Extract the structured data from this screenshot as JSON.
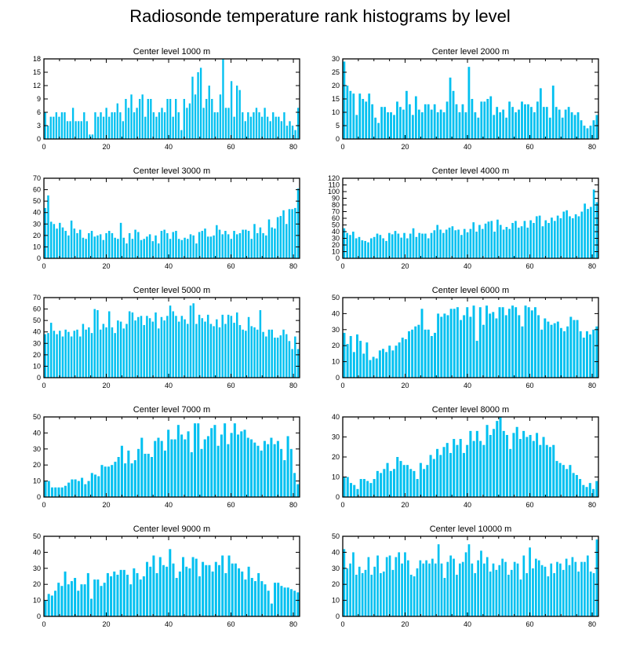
{
  "title": "Radiosonde temperature rank histograms by level",
  "colors": {
    "bar": "#00c0f0",
    "axis": "#000000",
    "background": "#ffffff"
  },
  "chart_data": [
    {
      "type": "bar",
      "title": "Center level 1000 m",
      "ylim": [
        0,
        18
      ],
      "yticks": [
        0,
        3,
        6,
        9,
        12,
        15,
        18
      ],
      "xlim": [
        0,
        82
      ],
      "xticks": [
        0,
        20,
        40,
        60,
        80
      ],
      "yaxis_side": "left",
      "values": [
        6,
        3,
        5,
        5,
        6,
        5,
        6,
        6,
        4,
        4,
        7,
        4,
        4,
        4,
        6,
        4,
        1,
        1,
        6,
        5,
        6,
        5,
        7,
        5,
        6,
        6,
        8,
        6,
        4,
        9,
        7,
        10,
        6,
        7,
        9,
        10,
        5,
        9,
        9,
        6,
        5,
        6,
        7,
        6,
        9,
        9,
        5,
        9,
        6,
        2,
        9,
        7,
        8,
        14,
        10,
        15,
        16,
        7,
        9,
        12,
        9,
        6,
        6,
        10,
        18,
        7,
        7,
        13,
        5,
        12,
        11,
        6,
        4,
        6,
        5,
        6,
        7,
        6,
        5,
        7,
        5,
        4,
        6,
        5,
        5,
        4,
        6,
        3,
        4,
        3,
        2,
        7
      ]
    },
    {
      "type": "bar",
      "title": "Center level 2000 m",
      "ylim": [
        0,
        30
      ],
      "yticks": [
        0,
        5,
        10,
        15,
        20,
        25,
        30
      ],
      "xlim": [
        0,
        82
      ],
      "xticks": [
        0,
        20,
        40,
        60,
        80
      ],
      "yaxis_side": "left",
      "values": [
        29,
        20,
        18,
        17,
        9,
        17,
        15,
        14,
        17,
        13,
        8,
        6,
        12,
        12,
        10,
        10,
        9,
        14,
        12,
        11,
        18,
        13,
        9,
        16,
        11,
        10,
        13,
        13,
        11,
        13,
        10,
        11,
        10,
        14,
        23,
        18,
        13,
        10,
        13,
        10,
        27,
        15,
        10,
        8,
        14,
        14,
        15,
        16,
        9,
        12,
        10,
        11,
        8,
        14,
        12,
        10,
        11,
        14,
        13,
        13,
        12,
        10,
        14,
        19,
        12,
        12,
        8,
        20,
        12,
        11,
        8,
        11,
        12,
        10,
        9,
        10,
        7,
        5,
        4,
        5,
        7,
        9
      ]
    },
    {
      "type": "bar",
      "title": "Center level 3000 m",
      "ylim": [
        0,
        70
      ],
      "yticks": [
        0,
        10,
        20,
        30,
        40,
        50,
        60,
        70
      ],
      "xlim": [
        0,
        82
      ],
      "xticks": [
        0,
        20,
        40,
        60,
        80
      ],
      "yaxis_side": "left",
      "values": [
        44,
        55,
        32,
        30,
        26,
        31,
        27,
        24,
        20,
        33,
        26,
        22,
        25,
        18,
        17,
        22,
        24,
        19,
        20,
        21,
        16,
        22,
        24,
        22,
        18,
        17,
        31,
        18,
        13,
        22,
        17,
        25,
        23,
        16,
        17,
        19,
        21,
        15,
        20,
        13,
        24,
        25,
        22,
        17,
        23,
        24,
        17,
        16,
        18,
        17,
        21,
        20,
        13,
        23,
        24,
        26,
        19,
        19,
        20,
        29,
        25,
        21,
        24,
        21,
        17,
        24,
        21,
        22,
        25,
        25,
        24,
        17,
        30,
        22,
        27,
        22,
        20,
        34,
        27,
        26,
        36,
        37,
        42,
        30,
        43,
        43,
        44,
        61
      ]
    },
    {
      "type": "bar",
      "title": "Center level 4000 m",
      "ylim": [
        0,
        120
      ],
      "yticks": [
        0,
        10,
        20,
        30,
        40,
        50,
        60,
        70,
        80,
        90,
        100,
        110,
        120
      ],
      "xlim": [
        0,
        82
      ],
      "xticks": [
        0,
        20,
        40,
        60,
        80
      ],
      "yaxis_side": "left",
      "values": [
        45,
        38,
        35,
        40,
        30,
        32,
        27,
        26,
        24,
        30,
        32,
        37,
        35,
        30,
        26,
        38,
        36,
        41,
        37,
        31,
        38,
        30,
        37,
        45,
        32,
        38,
        37,
        37,
        30,
        38,
        42,
        50,
        43,
        38,
        43,
        46,
        48,
        42,
        43,
        35,
        44,
        39,
        44,
        54,
        40,
        50,
        44,
        52,
        55,
        56,
        40,
        58,
        50,
        43,
        47,
        44,
        53,
        56,
        46,
        48,
        56,
        46,
        57,
        53,
        63,
        64,
        48,
        57,
        53,
        61,
        56,
        64,
        60,
        70,
        72,
        63,
        60,
        66,
        63,
        70,
        82,
        74,
        77,
        103,
        84
      ]
    },
    {
      "type": "bar",
      "title": "Center level 5000 m",
      "ylim": [
        0,
        70
      ],
      "yticks": [
        0,
        10,
        20,
        30,
        40,
        50,
        60,
        70
      ],
      "xlim": [
        0,
        82
      ],
      "xticks": [
        0,
        20,
        40,
        60,
        80
      ],
      "yaxis_side": "left",
      "values": [
        38,
        39,
        48,
        41,
        38,
        41,
        36,
        42,
        40,
        36,
        41,
        42,
        36,
        47,
        42,
        44,
        39,
        60,
        59,
        42,
        47,
        44,
        58,
        44,
        39,
        50,
        49,
        43,
        47,
        58,
        57,
        50,
        53,
        54,
        46,
        54,
        52,
        49,
        57,
        43,
        53,
        50,
        54,
        63,
        58,
        54,
        49,
        54,
        51,
        47,
        63,
        65,
        47,
        55,
        52,
        49,
        55,
        47,
        45,
        51,
        44,
        55,
        47,
        55,
        54,
        48,
        57,
        46,
        42,
        41,
        53,
        45,
        44,
        42,
        59,
        40,
        36,
        42,
        42,
        35,
        35,
        37,
        42,
        38,
        32,
        25,
        36,
        25
      ]
    },
    {
      "type": "bar",
      "title": "Center level 6000 m",
      "ylim": [
        0,
        50
      ],
      "yticks": [
        0,
        10,
        20,
        30,
        40,
        50
      ],
      "xlim": [
        0,
        82
      ],
      "xticks": [
        0,
        20,
        40,
        60,
        80
      ],
      "yaxis_side": "left",
      "values": [
        28,
        21,
        26,
        16,
        27,
        23,
        15,
        22,
        11,
        13,
        12,
        17,
        18,
        16,
        20,
        17,
        20,
        22,
        25,
        24,
        29,
        30,
        32,
        33,
        43,
        30,
        30,
        26,
        28,
        40,
        38,
        40,
        39,
        43,
        43,
        44,
        36,
        39,
        44,
        38,
        45,
        23,
        44,
        33,
        45,
        40,
        41,
        37,
        44,
        44,
        39,
        43,
        45,
        44,
        39,
        32,
        45,
        44,
        42,
        44,
        39,
        30,
        37,
        35,
        33,
        34,
        35,
        31,
        29,
        32,
        38,
        36,
        36,
        29,
        25,
        29,
        27,
        30,
        32
      ]
    },
    {
      "type": "bar",
      "title": "Center level 7000 m",
      "ylim": [
        0,
        50
      ],
      "yticks": [
        0,
        10,
        20,
        30,
        40,
        50
      ],
      "xlim": [
        0,
        82
      ],
      "xticks": [
        0,
        20,
        40,
        60,
        80
      ],
      "yaxis_side": "left",
      "values": [
        10,
        10,
        6,
        6,
        6,
        6,
        7,
        9,
        11,
        11,
        10,
        12,
        8,
        10,
        15,
        14,
        13,
        20,
        19,
        19,
        20,
        22,
        25,
        32,
        21,
        29,
        21,
        23,
        30,
        37,
        27,
        27,
        25,
        35,
        37,
        35,
        29,
        42,
        36,
        36,
        45,
        39,
        36,
        41,
        28,
        46,
        46,
        30,
        36,
        38,
        43,
        45,
        32,
        39,
        46,
        33,
        40,
        46,
        39,
        41,
        42,
        37,
        36,
        34,
        32,
        29,
        35,
        33,
        37,
        33,
        35,
        30,
        23,
        38,
        30,
        15,
        8
      ]
    },
    {
      "type": "bar",
      "title": "Center level 8000 m",
      "ylim": [
        0,
        40
      ],
      "yticks": [
        0,
        10,
        20,
        30,
        40
      ],
      "xlim": [
        0,
        82
      ],
      "xticks": [
        0,
        20,
        40,
        60,
        80
      ],
      "yaxis_side": "left",
      "values": [
        10,
        10,
        7,
        6,
        4,
        9,
        9,
        8,
        7,
        9,
        13,
        12,
        14,
        17,
        13,
        14,
        20,
        18,
        16,
        16,
        14,
        13,
        9,
        17,
        14,
        16,
        21,
        19,
        24,
        21,
        25,
        27,
        22,
        29,
        26,
        29,
        22,
        26,
        33,
        28,
        33,
        28,
        26,
        36,
        31,
        34,
        38,
        40,
        33,
        31,
        24,
        32,
        35,
        29,
        33,
        30,
        31,
        28,
        32,
        26,
        30,
        26,
        25,
        26,
        18,
        17,
        16,
        14,
        16,
        12,
        11,
        9,
        6,
        5,
        7,
        4,
        8
      ]
    },
    {
      "type": "bar",
      "title": "Center level 9000 m",
      "ylim": [
        0,
        50
      ],
      "yticks": [
        0,
        10,
        20,
        30,
        40,
        50
      ],
      "xlim": [
        0,
        82
      ],
      "xticks": [
        0,
        20,
        40,
        60,
        80
      ],
      "yaxis_side": "left",
      "values": [
        10,
        14,
        13,
        16,
        21,
        19,
        28,
        20,
        22,
        24,
        16,
        20,
        20,
        27,
        11,
        23,
        23,
        19,
        21,
        27,
        25,
        28,
        26,
        29,
        29,
        26,
        20,
        30,
        27,
        23,
        25,
        34,
        31,
        38,
        27,
        37,
        32,
        31,
        42,
        33,
        24,
        28,
        37,
        31,
        30,
        37,
        36,
        25,
        34,
        32,
        32,
        28,
        34,
        32,
        38,
        27,
        38,
        33,
        33,
        30,
        28,
        23,
        31,
        24,
        22,
        27,
        22,
        20,
        16,
        8,
        21,
        21,
        19,
        18,
        18,
        17,
        16,
        15
      ]
    },
    {
      "type": "bar",
      "title": "Center level 10000 m",
      "ylim": [
        0,
        50
      ],
      "yticks": [
        0,
        10,
        20,
        30,
        40,
        50
      ],
      "xlim": [
        0,
        82
      ],
      "xticks": [
        0,
        20,
        40,
        60,
        80
      ],
      "yaxis_side": "left",
      "values": [
        42,
        30,
        33,
        40,
        26,
        31,
        27,
        29,
        37,
        26,
        31,
        38,
        27,
        28,
        37,
        38,
        29,
        37,
        40,
        33,
        40,
        35,
        26,
        25,
        30,
        35,
        33,
        35,
        33,
        36,
        33,
        45,
        33,
        24,
        34,
        38,
        36,
        26,
        33,
        34,
        40,
        45,
        33,
        27,
        35,
        41,
        33,
        37,
        28,
        33,
        29,
        32,
        36,
        34,
        26,
        29,
        34,
        33,
        23,
        38,
        27,
        43,
        30,
        36,
        35,
        32,
        31,
        25,
        33,
        27,
        34,
        33,
        29,
        36,
        32,
        37,
        34,
        28,
        34,
        34,
        38,
        28,
        27,
        48
      ]
    }
  ]
}
